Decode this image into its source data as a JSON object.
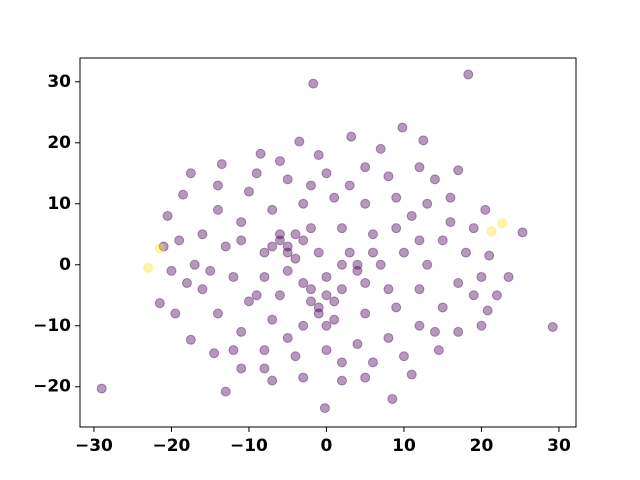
{
  "chart_data": {
    "type": "scatter",
    "alpha": 0.4,
    "xlim": [
      -31.8,
      32.2
    ],
    "ylim": [
      -26.6,
      33.9
    ],
    "xticks": [
      {
        "value": -30,
        "label": "−30"
      },
      {
        "value": -20,
        "label": "−20"
      },
      {
        "value": -10,
        "label": "−10"
      },
      0,
      10,
      20,
      30
    ],
    "yticks": [
      {
        "value": -20,
        "label": "−20"
      },
      {
        "value": -10,
        "label": "−10"
      },
      0,
      10,
      20,
      30
    ],
    "series": [
      {
        "color": "#440154",
        "x": [
          -29,
          -1.7,
          18.3,
          29.2,
          -0.2,
          25.3,
          20.8,
          -13,
          9.8,
          12.5,
          3.2,
          -3.5,
          -8.5,
          -13.5,
          -17.5,
          -18.5,
          -20.5,
          -21,
          -21.5,
          -19.5,
          -17.5,
          -14.5,
          -11,
          -7,
          -3,
          2,
          5,
          8.5,
          11,
          14.5,
          17,
          20,
          22,
          23.5,
          21,
          20.5,
          17,
          14,
          8,
          5,
          0,
          -5,
          -10,
          -14,
          -16,
          -17,
          -16,
          -14,
          -11,
          -8,
          -4,
          0,
          4,
          8,
          12,
          15,
          17,
          18,
          16,
          13,
          9,
          5,
          1,
          -3,
          -7,
          -11,
          -13,
          -12,
          -10,
          -7,
          -3,
          1,
          5,
          9,
          12,
          13,
          12,
          9,
          6,
          2,
          -2,
          -6,
          -8,
          -8,
          -6,
          -2,
          2,
          5,
          7,
          6,
          3,
          -1,
          -4,
          -5,
          -3,
          0,
          2,
          -5,
          -6,
          -4,
          -5,
          -7,
          -3,
          0,
          -1,
          1,
          -2,
          -1,
          0,
          4,
          4,
          10,
          15,
          -9,
          -15,
          -19,
          19,
          10,
          -5,
          -12,
          6,
          3,
          -1,
          12,
          7,
          -6,
          -18,
          16,
          19,
          -2,
          2,
          -9,
          8,
          11,
          -11,
          -14,
          14,
          20,
          -20,
          -8
        ],
        "y": [
          -20.3,
          29.7,
          31.2,
          -10.2,
          -23.5,
          5.3,
          -7.5,
          -20.8,
          22.5,
          20.4,
          21,
          20.2,
          18.2,
          16.5,
          15,
          11.5,
          8,
          3,
          -6.3,
          -8,
          -12.3,
          -14.5,
          -17,
          -19,
          -18.5,
          -19,
          -18.5,
          -22,
          -18,
          -14,
          -11,
          -10,
          -5,
          -2,
          1.5,
          9,
          15.5,
          14,
          14.5,
          16,
          15,
          14,
          12,
          9,
          5,
          0,
          -4,
          -8,
          -11,
          -14,
          -15,
          -14,
          -13,
          -12,
          -10,
          -7,
          -3,
          2,
          7,
          10,
          11,
          10,
          11,
          10,
          9,
          7,
          3,
          -2,
          -6,
          -9,
          -10,
          -9,
          -8,
          -7,
          -4,
          0,
          4,
          6,
          5,
          6,
          6,
          5,
          2,
          -2,
          -5,
          -6,
          -4,
          -3,
          0,
          2,
          2,
          2,
          1,
          -1,
          -3,
          -2,
          0,
          3,
          4,
          5,
          2,
          3,
          4,
          -5,
          -7,
          -6,
          -4,
          -8,
          -10,
          -1,
          0,
          2,
          4,
          15,
          -1,
          4,
          -5,
          -15,
          -12,
          -14,
          -16,
          13,
          18,
          16,
          19,
          17,
          -3,
          11,
          6,
          13,
          -16,
          -5,
          -4,
          8,
          4,
          13,
          -11,
          -2,
          -1,
          -17
        ]
      },
      {
        "color": "#fde725",
        "x": [
          -23,
          -21.5,
          21.3,
          22.7
        ],
        "y": [
          -0.5,
          2.7,
          5.5,
          6.8
        ]
      }
    ]
  }
}
